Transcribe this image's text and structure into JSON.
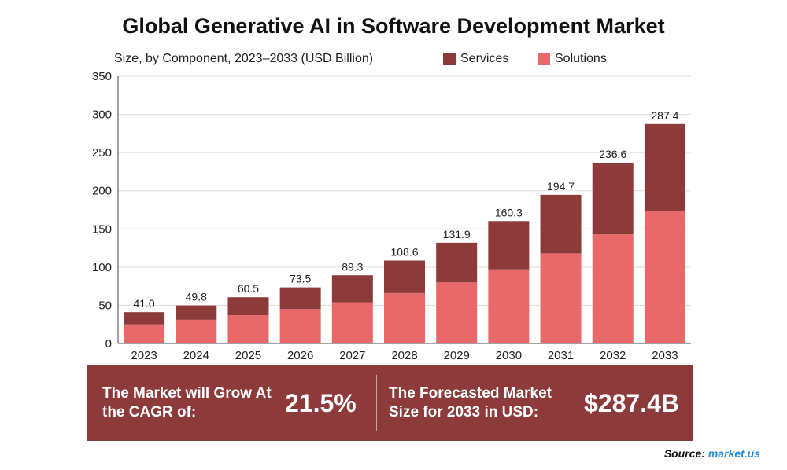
{
  "chart_data": {
    "type": "bar",
    "stacked": true,
    "title": "Global Generative AI in Software Development Market",
    "subtitle": "Size, by Component, 2023–2033 (USD Billion)",
    "categories": [
      "2023",
      "2024",
      "2025",
      "2026",
      "2027",
      "2028",
      "2029",
      "2030",
      "2031",
      "2032",
      "2033"
    ],
    "series": [
      {
        "name": "Solutions",
        "color": "#e8696a",
        "values": [
          25,
          31,
          37,
          45,
          54,
          66,
          80,
          97,
          118,
          143,
          174
        ]
      },
      {
        "name": "Services",
        "color": "#8c3a3a",
        "values": [
          16.0,
          18.8,
          23.5,
          28.5,
          35.3,
          42.6,
          51.9,
          63.3,
          76.7,
          93.6,
          113.4
        ]
      }
    ],
    "totals": [
      "41.0",
      "49.8",
      "60.5",
      "73.5",
      "89.3",
      "108.6",
      "131.9",
      "160.3",
      "194.7",
      "236.6",
      "287.4"
    ],
    "ylim": [
      0,
      350
    ],
    "yticks": [
      0,
      50,
      100,
      150,
      200,
      250,
      300,
      350
    ],
    "grid": true,
    "legend_position": "top-right"
  },
  "legend": {
    "services_label": "Services",
    "solutions_label": "Solutions",
    "services_color": "#8c3a3a",
    "solutions_color": "#e8696a"
  },
  "banner": {
    "cagr_label": "The Market will Grow At the CAGR of:",
    "cagr_value": "21.5%",
    "forecast_label": "The Forecasted Market Size for 2033 in USD:",
    "forecast_value": "$287.4B",
    "background": "#8c3a3a"
  },
  "source": {
    "prefix": "Source:",
    "name": "market.us"
  }
}
